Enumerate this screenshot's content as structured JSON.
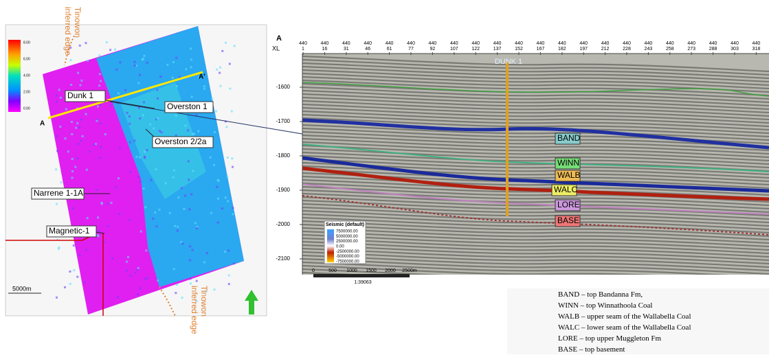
{
  "map": {
    "colorbar": [
      "8.00",
      "6.00",
      "4.00",
      "2.00",
      "0.00"
    ],
    "wells": [
      "Dunk 1",
      "Overston 1",
      "Overston 2/2a",
      "Narrene 1-1A",
      "Magnetic-1"
    ],
    "line_start": "A",
    "line_end": "A'",
    "edge_top": [
      "Tinowon",
      "inferred edge"
    ],
    "edge_bottom": [
      "Tinowon",
      "inferred edge"
    ],
    "scale": "5000m"
  },
  "section": {
    "panel": "A",
    "axis_label": "XL",
    "inline_row": [
      "440",
      "440",
      "440",
      "440",
      "440",
      "440",
      "440",
      "440",
      "440",
      "440",
      "440",
      "440",
      "440",
      "440",
      "440",
      "440",
      "440",
      "440",
      "440",
      "440",
      "440",
      "440"
    ],
    "crosslines": [
      "1",
      "16",
      "31",
      "46",
      "61",
      "77",
      "92",
      "107",
      "122",
      "137",
      "152",
      "167",
      "182",
      "197",
      "212",
      "228",
      "243",
      "258",
      "273",
      "288",
      "303",
      "318"
    ],
    "depths": [
      "-1600",
      "-1700",
      "-1800",
      "-1900",
      "-2000",
      "-2100"
    ],
    "well": "DUNK 1",
    "horizons": [
      "BAND",
      "WINN",
      "WALB",
      "WALC",
      "LORE",
      "BASE"
    ],
    "seismic_legend": {
      "title": "Seismic (default)",
      "values": [
        "7500000.00",
        "5000000.00",
        "2500000.00",
        "0.00",
        "-2500000.00",
        "-5000000.00",
        "-7500000.00"
      ]
    },
    "scale": [
      "0",
      "500",
      "1000",
      "1500",
      "2000",
      "2500m"
    ],
    "ratio": "1:39063"
  },
  "legend": [
    "BAND – top Bandanna Fm,",
    "WINN – top Winnathoola Coal",
    "WALB – upper seam of the Wallabella Coal",
    "WALC – lower seam of the Wallabella Coal",
    "LORE – top upper Muggleton Fm",
    "BASE  – top basement"
  ]
}
